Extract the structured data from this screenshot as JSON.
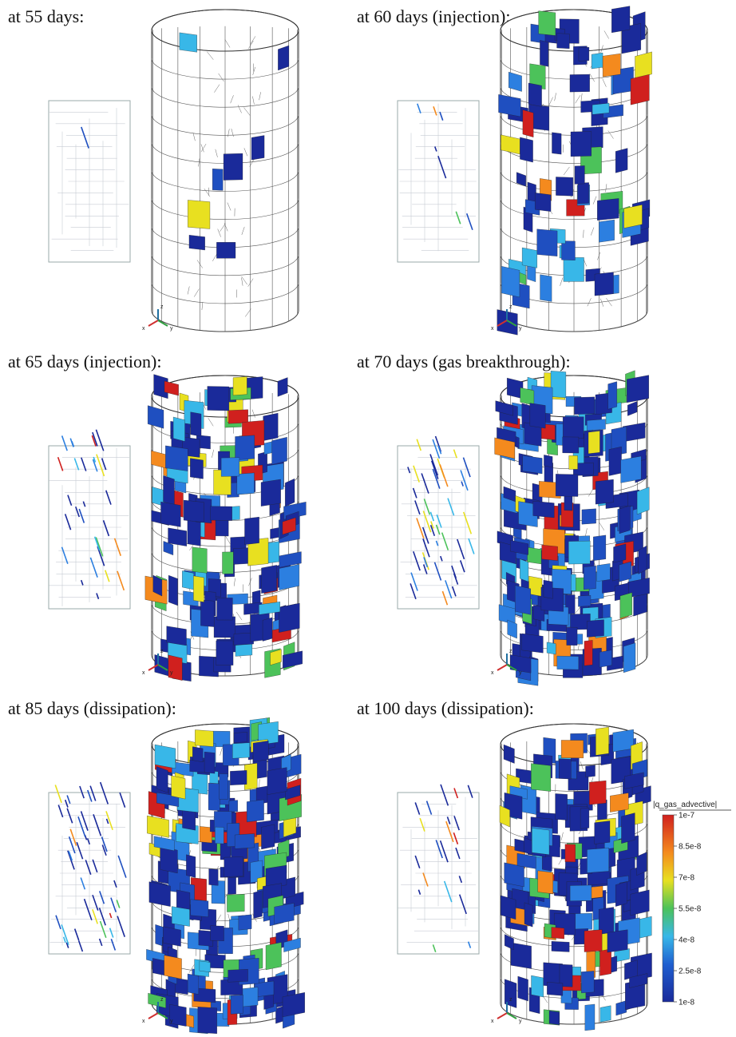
{
  "panels": [
    {
      "title": "at 55 days:"
    },
    {
      "title": "at 60 days (injection):"
    },
    {
      "title": "at 65 days (injection):"
    },
    {
      "title": "at 70 days (gas breakthrough):"
    },
    {
      "title": "at 85 days (dissipation):"
    },
    {
      "title": "at 100 days (dissipation):"
    }
  ],
  "axis_labels": {
    "x": "x",
    "y": "y",
    "z": "z"
  },
  "colorbar": {
    "title": "|q_gas_advective|",
    "labels": [
      "1e-7",
      "8.5e-8",
      "7e-8",
      "5.5e-8",
      "4e-8",
      "2.5e-8",
      "1e-8"
    ]
  }
}
